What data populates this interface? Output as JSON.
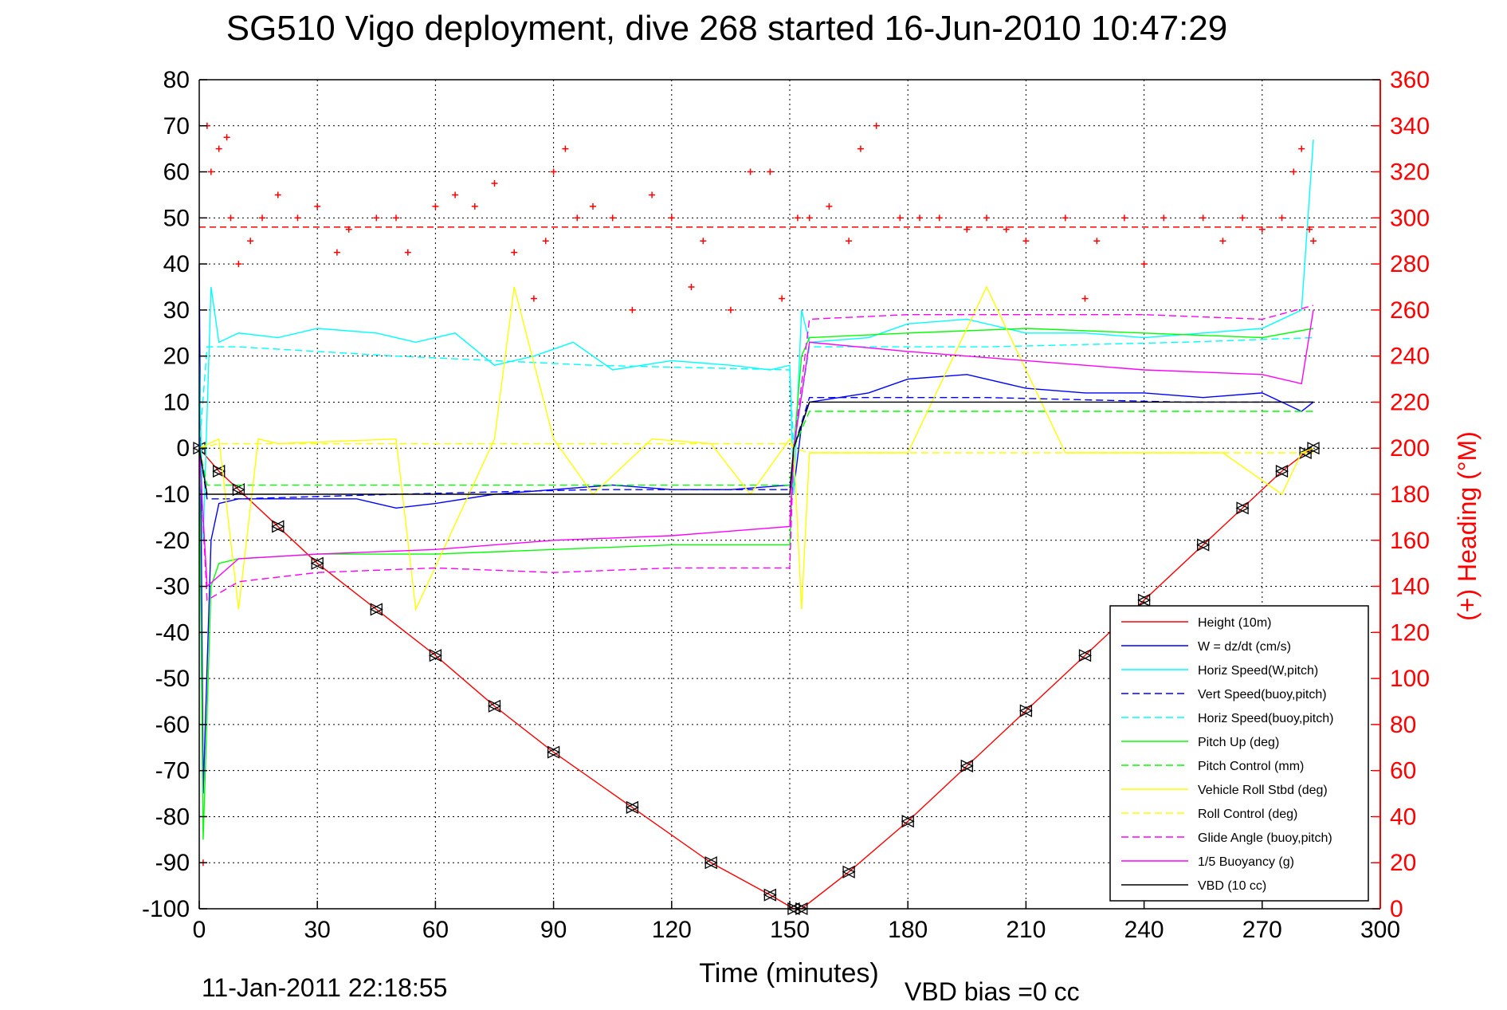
{
  "chart_data": {
    "type": "line",
    "title": "SG510 Vigo deployment, dive 268 started 16-Jun-2010 10:47:29",
    "xlabel": "Time (minutes)",
    "ylabel": "",
    "ylabel_right": "(+) Heading (°M)",
    "footer_date": "11-Jan-2011 22:18:55",
    "footer_vbd": "VBD bias =0 cc",
    "xlim": [
      0,
      300
    ],
    "ylim": [
      -100,
      80
    ],
    "ylim_right": [
      0,
      360
    ],
    "x_ticks": [
      "0",
      "30",
      "60",
      "90",
      "120",
      "150",
      "180",
      "210",
      "240",
      "270",
      "300"
    ],
    "y_ticks": [
      "80",
      "70",
      "60",
      "50",
      "40",
      "30",
      "20",
      "10",
      "0",
      "-10",
      "-20",
      "-30",
      "-40",
      "-50",
      "-60",
      "-70",
      "-80",
      "-90",
      "-100"
    ],
    "y_ticks_right": [
      "360",
      "340",
      "320",
      "300",
      "280",
      "260",
      "240",
      "220",
      "200",
      "180",
      "160",
      "140",
      "120",
      "100",
      "80",
      "60",
      "40",
      "20",
      "0"
    ],
    "grid": true,
    "legend_position": "lower-right",
    "colors": {
      "height": "#ff0000",
      "w": "#0000ff",
      "horiz_speed_pitch": "#00ffff",
      "pitch_up": "#00ff00",
      "roll": "#ffff00",
      "glide": "#ff00ff",
      "buoyancy": "#ff00ff",
      "vbd": "#000000",
      "heading": "#ff0000",
      "axis_right": "#ff0000"
    },
    "heading_reference": 296,
    "series": [
      {
        "name": "Height (10m)",
        "key": "height",
        "color": "#ff0000",
        "style": "solid",
        "x": [
          0,
          5,
          10,
          20,
          30,
          45,
          60,
          75,
          90,
          110,
          130,
          145,
          151,
          153,
          165,
          180,
          195,
          210,
          225,
          240,
          255,
          265,
          275,
          281,
          283
        ],
        "y": [
          0,
          -5,
          -9,
          -17,
          -25,
          -35,
          -45,
          -56,
          -66,
          -78,
          -90,
          -97,
          -100,
          -100,
          -92,
          -81,
          -69,
          -57,
          -45,
          -33,
          -21,
          -13,
          -5,
          -1,
          0
        ]
      },
      {
        "name": "W = dz/dt (cm/s)",
        "key": "w",
        "color": "#0000ff",
        "style": "solid",
        "x": [
          0,
          1,
          3,
          5,
          10,
          20,
          30,
          40,
          50,
          60,
          75,
          90,
          105,
          120,
          135,
          150,
          151,
          153,
          155,
          170,
          180,
          195,
          210,
          225,
          240,
          255,
          270,
          280,
          283
        ],
        "y": [
          40,
          -75,
          -20,
          -12,
          -11,
          -11,
          -11,
          -11,
          -13,
          -12,
          -10,
          -9,
          -8,
          -9,
          -9,
          -8,
          -9,
          5,
          10,
          12,
          15,
          16,
          13,
          12,
          12,
          11,
          12,
          8,
          10
        ]
      },
      {
        "name": "Horiz Speed(W,pitch)",
        "key": "hsw",
        "color": "#00ffff",
        "style": "solid",
        "x": [
          0,
          1,
          3,
          5,
          10,
          20,
          30,
          45,
          55,
          65,
          75,
          85,
          95,
          105,
          120,
          135,
          145,
          150,
          151,
          153,
          155,
          170,
          180,
          195,
          210,
          225,
          240,
          255,
          270,
          280,
          283
        ],
        "y": [
          20,
          -20,
          35,
          23,
          25,
          24,
          26,
          25,
          23,
          25,
          18,
          20,
          23,
          17,
          19,
          18,
          17,
          18,
          -10,
          30,
          23,
          24,
          27,
          28,
          25,
          25,
          24,
          25,
          26,
          30,
          67
        ]
      },
      {
        "name": "Vert Speed(buoy,pitch)",
        "key": "vsb",
        "color": "#0000ff",
        "style": "dashed",
        "x": [
          0,
          2,
          10,
          50,
          100,
          150,
          151,
          155,
          200,
          250,
          283
        ],
        "y": [
          0,
          -11,
          -11,
          -10,
          -9,
          -9,
          0,
          11,
          11,
          10,
          10
        ]
      },
      {
        "name": "Horiz Speed(buoy,pitch)",
        "key": "hsb",
        "color": "#00ffff",
        "style": "dashed",
        "x": [
          0,
          2,
          10,
          50,
          100,
          150,
          151,
          155,
          200,
          250,
          283
        ],
        "y": [
          0,
          22,
          22,
          20,
          18,
          17,
          0,
          22,
          22,
          23,
          24
        ]
      },
      {
        "name": "Pitch Up (deg)",
        "key": "pitch",
        "color": "#00ff00",
        "style": "solid",
        "x": [
          0,
          1,
          3,
          5,
          10,
          30,
          60,
          90,
          120,
          150,
          151,
          153,
          155,
          180,
          210,
          240,
          270,
          283
        ],
        "y": [
          0,
          -85,
          -30,
          -25,
          -24,
          -23,
          -23,
          -22,
          -21,
          -21,
          0,
          20,
          24,
          25,
          26,
          25,
          24,
          26
        ]
      },
      {
        "name": "Pitch Control (mm)",
        "key": "pitchc",
        "color": "#00ff00",
        "style": "dashed",
        "x": [
          0,
          2,
          150,
          151,
          155,
          283
        ],
        "y": [
          0,
          -8,
          -8,
          0,
          8,
          8
        ]
      },
      {
        "name": "Vehicle Roll Stbd (deg)",
        "key": "roll",
        "color": "#ffff00",
        "style": "solid",
        "x": [
          0,
          5,
          10,
          15,
          20,
          50,
          55,
          75,
          80,
          90,
          100,
          115,
          130,
          140,
          150,
          151,
          153,
          155,
          180,
          200,
          220,
          240,
          260,
          275,
          280,
          283
        ],
        "y": [
          0,
          2,
          -35,
          2,
          1,
          2,
          -35,
          2,
          35,
          2,
          -10,
          2,
          1,
          -10,
          2,
          0,
          -35,
          -1,
          -1,
          35,
          -1,
          -1,
          -1,
          -10,
          -1,
          0
        ]
      },
      {
        "name": "Roll Control (deg)",
        "key": "rollc",
        "color": "#ffff00",
        "style": "dashed",
        "x": [
          0,
          5,
          10,
          50,
          100,
          150,
          151,
          155,
          200,
          250,
          283
        ],
        "y": [
          0,
          1,
          1,
          1,
          1,
          1,
          0,
          -1,
          -1,
          -1,
          -1
        ]
      },
      {
        "name": "Glide Angle (buoy,pitch)",
        "key": "glide",
        "color": "#ff00ff",
        "style": "dashed",
        "x": [
          0,
          2,
          10,
          30,
          60,
          90,
          120,
          150,
          151,
          155,
          180,
          210,
          240,
          270,
          283
        ],
        "y": [
          0,
          -33,
          -29,
          -27,
          -26,
          -27,
          -26,
          -26,
          0,
          28,
          29,
          29,
          29,
          28,
          31
        ]
      },
      {
        "name": "1/5 Buoyancy (g)",
        "key": "buoy",
        "color": "#ff00ff",
        "style": "solid",
        "x": [
          0,
          2,
          10,
          30,
          60,
          90,
          120,
          150,
          151,
          155,
          180,
          210,
          240,
          270,
          280,
          283
        ],
        "y": [
          0,
          -30,
          -24,
          -23,
          -22,
          -20,
          -19,
          -17,
          0,
          23,
          21,
          19,
          17,
          16,
          14,
          30
        ]
      },
      {
        "name": "VBD (10 cc)",
        "key": "vbd",
        "color": "#000000",
        "style": "solid",
        "x": [
          0,
          2,
          150,
          151,
          155,
          283
        ],
        "y": [
          0,
          -10,
          -10,
          0,
          10,
          10
        ]
      },
      {
        "name": "Heading",
        "key": "heading",
        "color": "#ff0000",
        "style": "markers",
        "axis": "right",
        "x": [
          1,
          2,
          3,
          5,
          7,
          8,
          10,
          13,
          16,
          20,
          25,
          30,
          35,
          38,
          45,
          50,
          53,
          60,
          65,
          70,
          75,
          80,
          85,
          88,
          90,
          93,
          96,
          100,
          105,
          110,
          115,
          120,
          125,
          128,
          135,
          140,
          145,
          148,
          152,
          155,
          160,
          165,
          168,
          172,
          178,
          183,
          188,
          195,
          200,
          205,
          210,
          220,
          225,
          228,
          235,
          240,
          245,
          255,
          260,
          265,
          270,
          275,
          278,
          280,
          282,
          283
        ],
        "y": [
          20,
          340,
          320,
          330,
          335,
          300,
          280,
          290,
          300,
          310,
          300,
          305,
          285,
          295,
          300,
          300,
          285,
          305,
          310,
          305,
          315,
          285,
          265,
          290,
          320,
          330,
          300,
          305,
          300,
          260,
          310,
          300,
          270,
          290,
          260,
          320,
          320,
          265,
          300,
          300,
          305,
          290,
          330,
          340,
          300,
          300,
          300,
          295,
          300,
          295,
          290,
          300,
          265,
          290,
          300,
          280,
          300,
          300,
          290,
          300,
          295,
          300,
          320,
          330,
          295,
          290
        ]
      }
    ]
  }
}
